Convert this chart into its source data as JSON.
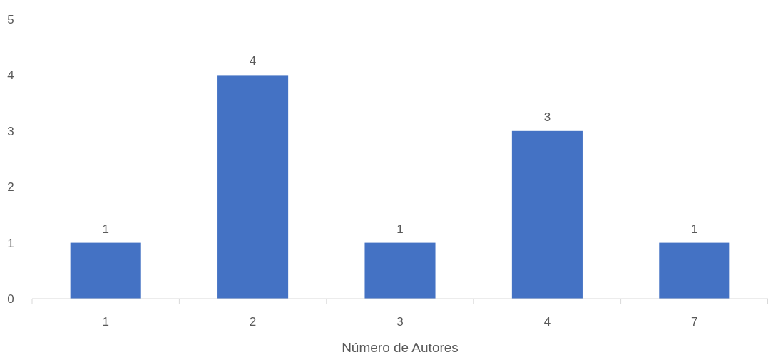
{
  "chart_data": {
    "type": "bar",
    "xlabel": "Número de Autores",
    "categories": [
      "1",
      "2",
      "3",
      "4",
      "7"
    ],
    "values": [
      1,
      4,
      1,
      3,
      1
    ],
    "color": "#4472c4",
    "ylim": [
      0,
      5
    ],
    "yticks": [
      0,
      1,
      2,
      3,
      4,
      5
    ],
    "grid": false,
    "data_labels": true
  }
}
